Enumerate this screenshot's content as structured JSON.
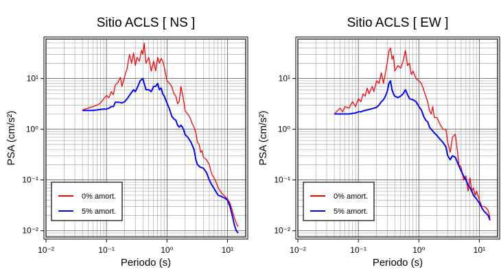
{
  "chart_data": [
    {
      "type": "line",
      "title": "Sitio ACLS [ NS ]",
      "xlabel": "Periodo (s)",
      "ylabel": "PSA (cm/s²)",
      "xscale": "log",
      "yscale": "log",
      "xlim": [
        0.01,
        20
      ],
      "ylim": [
        0.0075,
        60
      ],
      "grid": true,
      "legend_position": "bottom-left",
      "x_ticks": [
        "10⁻²",
        "10⁻¹",
        "10⁰",
        "10¹"
      ],
      "y_ticks": [
        "10⁻²",
        "10⁻¹",
        "10⁰",
        "10¹"
      ],
      "series": [
        {
          "name": "0% amort.",
          "color": "#ff0000",
          "points": [
            [
              0.04,
              2.4
            ],
            [
              0.045,
              2.5
            ],
            [
              0.05,
              2.6
            ],
            [
              0.06,
              2.8
            ],
            [
              0.07,
              3
            ],
            [
              0.08,
              3.3
            ],
            [
              0.09,
              4
            ],
            [
              0.1,
              4.6
            ],
            [
              0.11,
              4.2
            ],
            [
              0.12,
              5.5
            ],
            [
              0.13,
              4.8
            ],
            [
              0.14,
              7.5
            ],
            [
              0.15,
              8
            ],
            [
              0.16,
              9
            ],
            [
              0.17,
              10.5
            ],
            [
              0.18,
              7
            ],
            [
              0.2,
              11
            ],
            [
              0.22,
              16
            ],
            [
              0.24,
              30
            ],
            [
              0.26,
              20
            ],
            [
              0.28,
              32
            ],
            [
              0.3,
              18
            ],
            [
              0.32,
              26
            ],
            [
              0.35,
              22
            ],
            [
              0.38,
              36
            ],
            [
              0.4,
              30
            ],
            [
              0.42,
              50
            ],
            [
              0.45,
              20
            ],
            [
              0.5,
              26
            ],
            [
              0.55,
              14
            ],
            [
              0.6,
              22
            ],
            [
              0.65,
              14
            ],
            [
              0.7,
              26
            ],
            [
              0.75,
              20
            ],
            [
              0.8,
              25
            ],
            [
              0.85,
              22
            ],
            [
              0.9,
              17
            ],
            [
              1,
              9
            ],
            [
              1.1,
              8
            ],
            [
              1.2,
              7
            ],
            [
              1.3,
              5
            ],
            [
              1.4,
              4.5
            ],
            [
              1.5,
              3.2
            ],
            [
              1.6,
              3.6
            ],
            [
              1.7,
              7
            ],
            [
              1.8,
              5
            ],
            [
              1.9,
              3.5
            ],
            [
              2,
              2.3
            ],
            [
              2.2,
              2
            ],
            [
              2.4,
              1.7
            ],
            [
              2.6,
              1.3
            ],
            [
              2.8,
              1.1
            ],
            [
              3,
              0.85
            ],
            [
              3.2,
              0.55
            ],
            [
              3.4,
              0.5
            ],
            [
              3.6,
              0.35
            ],
            [
              3.8,
              0.38
            ],
            [
              4,
              0.28
            ],
            [
              4.5,
              0.25
            ],
            [
              5,
              0.2
            ],
            [
              5.5,
              0.13
            ],
            [
              6,
              0.11
            ],
            [
              6.5,
              0.09
            ],
            [
              7,
              0.07
            ],
            [
              8,
              0.055
            ],
            [
              9,
              0.048
            ],
            [
              10,
              0.042
            ],
            [
              11,
              0.035
            ],
            [
              12,
              0.025
            ],
            [
              13,
              0.018
            ],
            [
              14,
              0.014
            ],
            [
              15,
              0.012
            ]
          ]
        },
        {
          "name": "5% amort.",
          "color": "#0000ff",
          "points": [
            [
              0.04,
              2.35
            ],
            [
              0.05,
              2.35
            ],
            [
              0.06,
              2.35
            ],
            [
              0.07,
              2.4
            ],
            [
              0.08,
              2.45
            ],
            [
              0.09,
              2.5
            ],
            [
              0.1,
              2.5
            ],
            [
              0.11,
              2.6
            ],
            [
              0.12,
              2.8
            ],
            [
              0.13,
              2.8
            ],
            [
              0.14,
              3.4
            ],
            [
              0.16,
              3.4
            ],
            [
              0.18,
              3.3
            ],
            [
              0.2,
              3.5
            ],
            [
              0.22,
              4
            ],
            [
              0.25,
              5
            ],
            [
              0.28,
              6
            ],
            [
              0.3,
              5.5
            ],
            [
              0.33,
              7
            ],
            [
              0.36,
              9
            ],
            [
              0.4,
              10
            ],
            [
              0.42,
              8
            ],
            [
              0.45,
              6
            ],
            [
              0.5,
              6
            ],
            [
              0.55,
              5.5
            ],
            [
              0.6,
              7
            ],
            [
              0.65,
              7
            ],
            [
              0.7,
              8
            ],
            [
              0.75,
              6
            ],
            [
              0.8,
              6.5
            ],
            [
              0.85,
              5
            ],
            [
              0.9,
              4.5
            ],
            [
              1,
              3.3
            ],
            [
              1.1,
              2.5
            ],
            [
              1.2,
              1.8
            ],
            [
              1.3,
              1.6
            ],
            [
              1.4,
              1.5
            ],
            [
              1.5,
              1.2
            ],
            [
              1.6,
              1.1
            ],
            [
              1.7,
              1.2
            ],
            [
              1.8,
              1.1
            ],
            [
              1.9,
              0.95
            ],
            [
              2,
              0.78
            ],
            [
              2.2,
              0.7
            ],
            [
              2.5,
              0.55
            ],
            [
              2.8,
              0.4
            ],
            [
              3,
              0.25
            ],
            [
              3.2,
              0.2
            ],
            [
              3.5,
              0.18
            ],
            [
              4,
              0.17
            ],
            [
              4.5,
              0.14
            ],
            [
              5,
              0.1
            ],
            [
              5.5,
              0.08
            ],
            [
              6,
              0.068
            ],
            [
              7,
              0.05
            ],
            [
              8,
              0.047
            ],
            [
              9,
              0.044
            ],
            [
              10,
              0.04
            ],
            [
              11,
              0.03
            ],
            [
              12,
              0.02
            ],
            [
              13,
              0.013
            ],
            [
              14,
              0.01
            ],
            [
              15,
              0.009
            ]
          ]
        }
      ]
    },
    {
      "type": "line",
      "title": "Sitio ACLS [ EW ]",
      "xlabel": "Periodo (s)",
      "ylabel": "PSA (cm/s²)",
      "xscale": "log",
      "yscale": "log",
      "xlim": [
        0.01,
        20
      ],
      "ylim": [
        0.0075,
        60
      ],
      "grid": true,
      "legend_position": "bottom-left",
      "x_ticks": [
        "10⁻²",
        "10⁻¹",
        "10⁰",
        "10¹"
      ],
      "y_ticks": [
        "10⁻²",
        "10⁻¹",
        "10⁰",
        "10¹"
      ],
      "series": [
        {
          "name": "0% amort.",
          "color": "#ff0000",
          "points": [
            [
              0.04,
              2
            ],
            [
              0.045,
              2.3
            ],
            [
              0.05,
              2.6
            ],
            [
              0.055,
              2.2
            ],
            [
              0.06,
              2.8
            ],
            [
              0.07,
              2.6
            ],
            [
              0.08,
              3.5
            ],
            [
              0.09,
              2.8
            ],
            [
              0.1,
              4
            ],
            [
              0.11,
              3.5
            ],
            [
              0.12,
              5
            ],
            [
              0.13,
              4.5
            ],
            [
              0.14,
              6.5
            ],
            [
              0.15,
              5
            ],
            [
              0.17,
              7
            ],
            [
              0.18,
              5.5
            ],
            [
              0.2,
              9
            ],
            [
              0.22,
              8
            ],
            [
              0.24,
              13
            ],
            [
              0.26,
              8
            ],
            [
              0.28,
              13
            ],
            [
              0.3,
              20
            ],
            [
              0.32,
              35
            ],
            [
              0.34,
              40
            ],
            [
              0.36,
              24
            ],
            [
              0.38,
              28
            ],
            [
              0.4,
              14
            ],
            [
              0.45,
              18
            ],
            [
              0.5,
              16
            ],
            [
              0.55,
              22
            ],
            [
              0.6,
              36
            ],
            [
              0.65,
              18
            ],
            [
              0.7,
              20
            ],
            [
              0.75,
              12
            ],
            [
              0.8,
              14
            ],
            [
              0.9,
              10
            ],
            [
              1,
              9
            ],
            [
              1.1,
              8
            ],
            [
              1.2,
              6
            ],
            [
              1.3,
              4.5
            ],
            [
              1.4,
              3.5
            ],
            [
              1.5,
              2.3
            ],
            [
              1.6,
              2
            ],
            [
              1.7,
              2.8
            ],
            [
              1.8,
              1.7
            ],
            [
              2,
              1.7
            ],
            [
              2.2,
              1.3
            ],
            [
              2.5,
              1
            ],
            [
              2.8,
              1
            ],
            [
              3,
              0.55
            ],
            [
              3.3,
              0.35
            ],
            [
              3.6,
              0.7
            ],
            [
              4,
              0.8
            ],
            [
              4.3,
              0.4
            ],
            [
              4.6,
              0.2
            ],
            [
              5,
              0.18
            ],
            [
              5.5,
              0.1
            ],
            [
              6,
              0.12
            ],
            [
              6.5,
              0.06
            ],
            [
              7,
              0.11
            ],
            [
              7.5,
              0.06
            ],
            [
              8,
              0.07
            ],
            [
              8.5,
              0.05
            ],
            [
              9,
              0.06
            ],
            [
              10,
              0.04
            ],
            [
              11,
              0.03
            ],
            [
              12,
              0.03
            ],
            [
              13,
              0.028
            ],
            [
              14,
              0.025
            ],
            [
              15,
              0.018
            ]
          ]
        },
        {
          "name": "5% amort.",
          "color": "#0000ff",
          "points": [
            [
              0.04,
              2
            ],
            [
              0.05,
              2
            ],
            [
              0.06,
              2
            ],
            [
              0.07,
              2
            ],
            [
              0.08,
              2.05
            ],
            [
              0.09,
              2.1
            ],
            [
              0.1,
              2.2
            ],
            [
              0.11,
              2.2
            ],
            [
              0.12,
              2.3
            ],
            [
              0.14,
              2.4
            ],
            [
              0.16,
              2.5
            ],
            [
              0.18,
              2.6
            ],
            [
              0.2,
              2.7
            ],
            [
              0.22,
              3
            ],
            [
              0.24,
              3.5
            ],
            [
              0.26,
              3.8
            ],
            [
              0.28,
              4.5
            ],
            [
              0.3,
              5.5
            ],
            [
              0.32,
              8
            ],
            [
              0.34,
              9
            ],
            [
              0.36,
              6
            ],
            [
              0.38,
              5
            ],
            [
              0.4,
              4.5
            ],
            [
              0.45,
              4.2
            ],
            [
              0.5,
              4.5
            ],
            [
              0.55,
              5
            ],
            [
              0.6,
              6
            ],
            [
              0.65,
              4.8
            ],
            [
              0.7,
              4
            ],
            [
              0.8,
              3.8
            ],
            [
              0.9,
              3.5
            ],
            [
              1,
              2.8
            ],
            [
              1.1,
              2.4
            ],
            [
              1.2,
              1.8
            ],
            [
              1.3,
              1.5
            ],
            [
              1.4,
              1.4
            ],
            [
              1.5,
              1.1
            ],
            [
              1.6,
              1
            ],
            [
              1.8,
              0.85
            ],
            [
              2,
              0.75
            ],
            [
              2.2,
              0.65
            ],
            [
              2.5,
              0.55
            ],
            [
              2.8,
              0.45
            ],
            [
              3,
              0.3
            ],
            [
              3.3,
              0.25
            ],
            [
              3.6,
              0.3
            ],
            [
              4,
              0.28
            ],
            [
              4.5,
              0.2
            ],
            [
              5,
              0.15
            ],
            [
              5.5,
              0.12
            ],
            [
              6,
              0.1
            ],
            [
              6.5,
              0.08
            ],
            [
              7,
              0.07
            ],
            [
              7.5,
              0.06
            ],
            [
              8,
              0.05
            ],
            [
              9,
              0.042
            ],
            [
              10,
              0.035
            ],
            [
              11,
              0.028
            ],
            [
              12,
              0.024
            ],
            [
              13,
              0.022
            ],
            [
              14,
              0.02
            ],
            [
              15,
              0.016
            ]
          ]
        }
      ]
    }
  ]
}
